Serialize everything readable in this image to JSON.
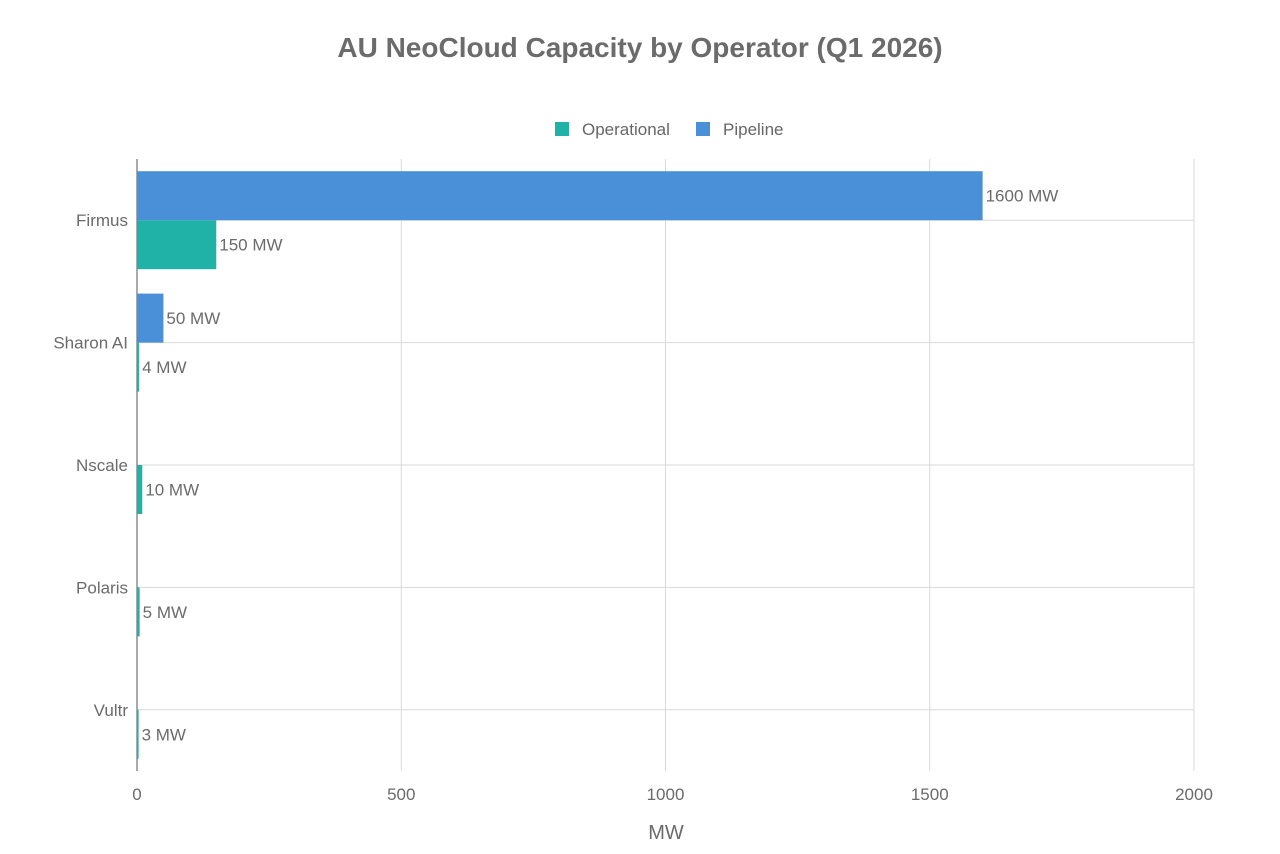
{
  "chart_data": {
    "type": "bar",
    "orientation": "horizontal",
    "title": "AU NeoCloud Capacity by Operator (Q1 2026)",
    "xlabel": "MW",
    "ylabel": "",
    "categories": [
      "Firmus",
      "Sharon AI",
      "Nscale",
      "Polaris",
      "Vultr"
    ],
    "series": [
      {
        "name": "Operational",
        "color": "#20b2a6",
        "values": [
          150,
          4,
          10,
          5,
          3
        ],
        "labels": [
          "150 MW",
          "4 MW",
          "10 MW",
          "5 MW",
          "3 MW"
        ]
      },
      {
        "name": "Pipeline",
        "color": "#4a90d9",
        "values": [
          1600,
          50,
          0,
          0,
          0
        ],
        "labels": [
          "1600 MW",
          "50 MW",
          "",
          "",
          ""
        ]
      }
    ],
    "xlim": [
      0,
      2000
    ],
    "xticks": [
      0,
      500,
      1000,
      1500,
      2000
    ],
    "grid": true,
    "legend": "top-center"
  }
}
